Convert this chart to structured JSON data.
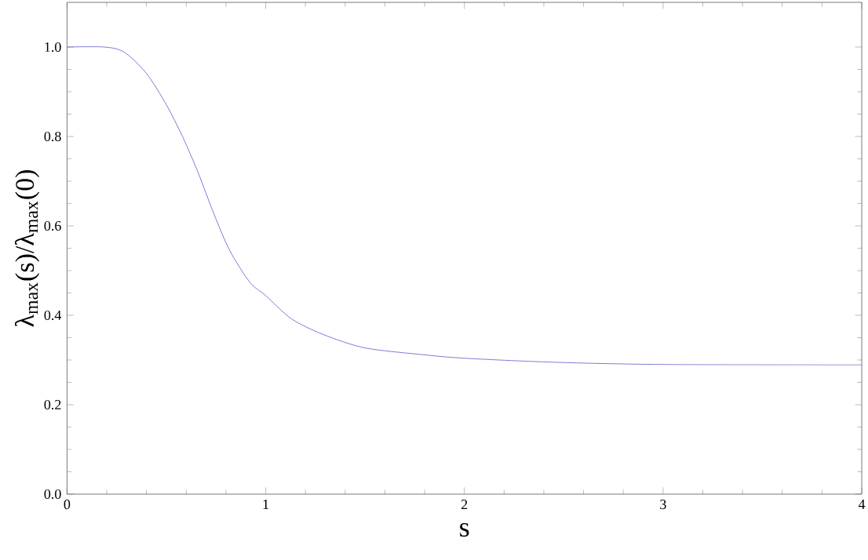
{
  "chart_data": {
    "type": "line",
    "xlabel": "s",
    "ylabel": "λ$_{max}$(s)/λ$_{max}$(0)",
    "x": [
      0,
      0.19,
      0.29,
      0.4,
      0.5,
      0.58,
      0.66,
      0.74,
      0.82,
      0.92,
      1.0,
      1.13,
      1.29,
      1.5,
      1.79,
      2.0,
      2.45,
      3.0,
      4.0
    ],
    "series": [
      {
        "color": "#5a5acc",
        "values": [
          1.0,
          1.0,
          0.988,
          0.941,
          0.871,
          0.801,
          0.719,
          0.626,
          0.544,
          0.474,
          0.444,
          0.392,
          0.357,
          0.327,
          0.312,
          0.304,
          0.295,
          0.29,
          0.289
        ]
      }
    ],
    "xlim": [
      0,
      4
    ],
    "ylim": [
      0,
      1.1
    ],
    "xticks": [
      0,
      1,
      2,
      3,
      4
    ],
    "yticks": [
      {
        "value": 0,
        "label": "0.0"
      },
      0.2,
      0.4,
      0.6,
      0.8,
      {
        "value": 1,
        "label": "1.0"
      }
    ],
    "grid": false,
    "marker": "none",
    "line_style": "solid"
  }
}
